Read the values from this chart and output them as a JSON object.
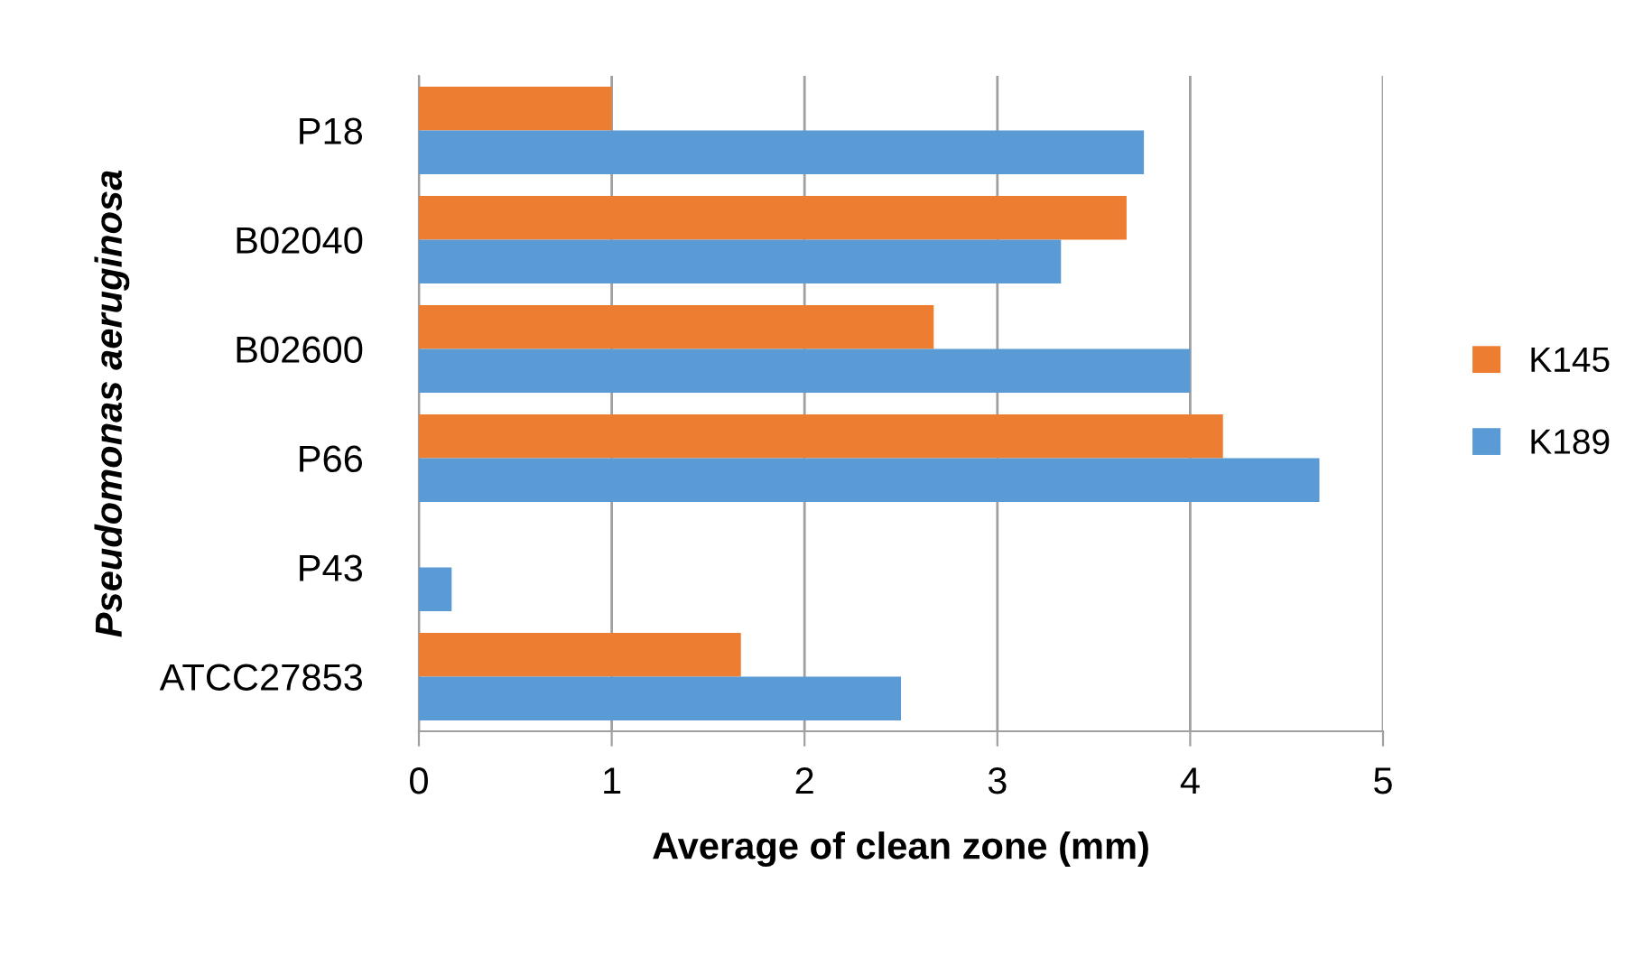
{
  "chart_data": {
    "type": "bar",
    "orientation": "horizontal",
    "categories": [
      "P18",
      "B02040",
      "B02600",
      "P66",
      "P43",
      "ATCC27853"
    ],
    "series": [
      {
        "name": "K145",
        "color": "#ed7d31",
        "values": [
          1.0,
          3.67,
          2.67,
          4.17,
          0,
          1.67
        ]
      },
      {
        "name": "K189",
        "color": "#5b9bd5",
        "values": [
          3.76,
          3.33,
          4.0,
          4.67,
          0.17,
          2.5
        ]
      }
    ],
    "xlabel": "Average of clean zone (mm)",
    "ylabel": "Pseudomonas aeruginosa",
    "xlim": [
      0,
      5
    ],
    "xticks": [
      0,
      1,
      2,
      3,
      4,
      5
    ],
    "grid": "x",
    "legend": "right"
  }
}
